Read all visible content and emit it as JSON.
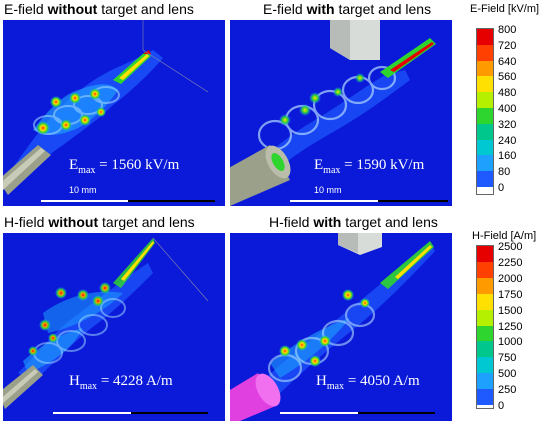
{
  "e_row": {
    "left_title_pre": "E-field ",
    "left_title_bold": "without",
    "left_title_post": " target and lens",
    "right_title_pre": "E-field ",
    "right_title_bold": "with",
    "right_title_post": " target and lens",
    "left_max_sym": "E",
    "left_max_sub": "max",
    "left_max_val": " = 1560 kV/m",
    "right_max_sym": "E",
    "right_max_sub": "max",
    "right_max_val": " = 1590 kV/m",
    "scale_label_left": "10 mm",
    "scale_label_right": "10 mm",
    "colorbar_title": "E-Field [kV/m]",
    "ticks": [
      "800",
      "720",
      "640",
      "560",
      "480",
      "400",
      "320",
      "240",
      "160",
      "80",
      "0"
    ]
  },
  "h_row": {
    "left_title_pre": "H-field ",
    "left_title_bold": "without",
    "left_title_post": " target and lens",
    "right_title_pre": "H-field ",
    "right_title_bold": "with",
    "right_title_post": " target and lens",
    "left_max_sym": "H",
    "left_max_sub": "max",
    "left_max_val": " = 4228 A/m",
    "right_max_sym": "H",
    "right_max_sub": "max",
    "right_max_val": " = 4050 A/m",
    "colorbar_title": "H-Field [A/m]",
    "ticks": [
      "2500",
      "2250",
      "2000",
      "1750",
      "1500",
      "1250",
      "1000",
      "750",
      "500",
      "250",
      "0"
    ]
  },
  "colors": {
    "background_field": "#0a1ad8",
    "colormap": [
      "#e60000",
      "#ff4000",
      "#ff9a00",
      "#ffe000",
      "#b4f000",
      "#2fd52f",
      "#00c88c",
      "#00c8d2",
      "#1ea0ff",
      "#1e5aff",
      "#0a1ad8"
    ]
  }
}
